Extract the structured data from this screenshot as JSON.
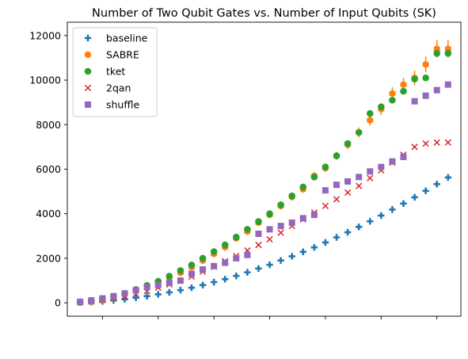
{
  "chart_data": {
    "type": "scatter",
    "title": "Number of Two Qubit Gates vs. Number of Input Qubits (SK)",
    "xlabel": "",
    "ylabel": "",
    "x": [
      4,
      6,
      8,
      10,
      12,
      14,
      16,
      18,
      20,
      22,
      24,
      26,
      28,
      30,
      32,
      34,
      36,
      38,
      40,
      42,
      44,
      46,
      48,
      50,
      52,
      54,
      56,
      58,
      60,
      62,
      64,
      66,
      68,
      70
    ],
    "xlim": [
      4,
      70
    ],
    "ylim": [
      0,
      12000
    ],
    "y_ticks": [
      "0",
      "2000",
      "4000",
      "6000",
      "8000",
      "10000",
      "12000"
    ],
    "y_tick_values": [
      0,
      2000,
      4000,
      6000,
      8000,
      10000,
      12000
    ],
    "x_tick_values": [
      8,
      18,
      28,
      38,
      48,
      58,
      68
    ],
    "legend_position": "top-left",
    "series": [
      {
        "name": "baseline",
        "marker": "plus",
        "color": "#1f77b4",
        "values": [
          10,
          40,
          70,
          110,
          160,
          230,
          300,
          380,
          470,
          570,
          680,
          800,
          930,
          1060,
          1210,
          1370,
          1540,
          1710,
          1900,
          2090,
          2290,
          2490,
          2710,
          2940,
          3170,
          3410,
          3660,
          3920,
          4190,
          4460,
          4740,
          5030,
          5330,
          5630
        ]
      },
      {
        "name": "SABRE",
        "marker": "hexagon",
        "color": "#ff7f0e",
        "values": [
          30,
          80,
          150,
          250,
          380,
          550,
          730,
          920,
          1150,
          1350,
          1600,
          1900,
          2200,
          2500,
          2900,
          3200,
          3600,
          3950,
          4350,
          4750,
          5100,
          5700,
          6050,
          6600,
          7100,
          7650,
          8200,
          8700,
          9400,
          9800,
          10100,
          10700,
          11400,
          11400
        ],
        "errors": [
          5,
          10,
          15,
          20,
          25,
          30,
          35,
          40,
          45,
          50,
          55,
          60,
          70,
          80,
          90,
          100,
          110,
          120,
          130,
          140,
          150,
          160,
          170,
          180,
          200,
          220,
          240,
          260,
          280,
          300,
          330,
          360,
          400,
          400
        ]
      },
      {
        "name": "tket",
        "marker": "circle",
        "color": "#2ca02c",
        "values": [
          40,
          100,
          180,
          290,
          420,
          600,
          780,
          970,
          1200,
          1450,
          1700,
          2000,
          2300,
          2600,
          2950,
          3300,
          3650,
          4000,
          4400,
          4800,
          5200,
          5650,
          6100,
          6600,
          7150,
          7650,
          8500,
          8800,
          9100,
          9500,
          10050,
          10100,
          11200,
          11200
        ]
      },
      {
        "name": "2qan",
        "marker": "x",
        "color": "#d62728",
        "values": [
          20,
          60,
          120,
          200,
          290,
          400,
          530,
          680,
          830,
          990,
          1180,
          1400,
          1620,
          1870,
          2100,
          2350,
          2600,
          2850,
          3150,
          3450,
          3750,
          4050,
          4350,
          4650,
          4950,
          5250,
          5600,
          5950,
          6300,
          6650,
          7000,
          7150,
          7200,
          7200
        ]
      },
      {
        "name": "shuffle",
        "marker": "square",
        "color": "#9467bd",
        "values": [
          50,
          110,
          200,
          300,
          420,
          560,
          700,
          800,
          900,
          1000,
          1300,
          1500,
          1650,
          1800,
          2000,
          2150,
          3100,
          3300,
          3450,
          3600,
          3800,
          3950,
          5050,
          5300,
          5450,
          5650,
          5900,
          6100,
          6350,
          6550,
          9050,
          9300,
          9550,
          9800
        ]
      }
    ]
  }
}
